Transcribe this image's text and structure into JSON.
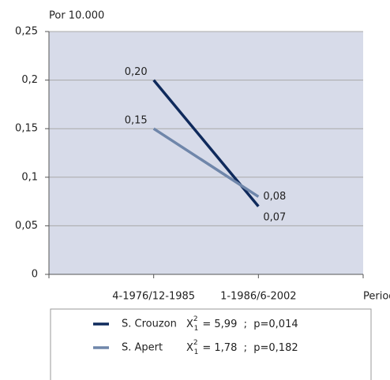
{
  "chart_data": {
    "type": "line",
    "y_axis_label": "Por 10.000",
    "x_axis_label": "Periodos",
    "categories": [
      "4-1976/12-1985",
      "1-1986/6-2002"
    ],
    "series": [
      {
        "name": "S. Crouzon",
        "color": "#0f2a5c",
        "values": [
          0.2,
          0.07
        ],
        "value_labels": [
          "0,20",
          "0,07"
        ]
      },
      {
        "name": "S. Apert",
        "color": "#6f86aa",
        "values": [
          0.15,
          0.08
        ],
        "value_labels": [
          "0,15",
          "0,08"
        ]
      }
    ],
    "legend_stats": [
      {
        "symbol": "X",
        "sup": "2",
        "sub": "1",
        "text": "= 5,99  ;  p=0,014"
      },
      {
        "symbol": "X",
        "sup": "2",
        "sub": "1",
        "text": "= 1,78  ;  p=0,182"
      }
    ],
    "ylim": [
      0,
      0.25
    ],
    "yticks": [
      0,
      {
        "value": 0.05,
        "label": "0,05"
      },
      {
        "value": 0.1,
        "label": "0,1"
      },
      {
        "value": 0.15,
        "label": "0,15"
      },
      {
        "value": 0.2,
        "label": "0,2"
      },
      {
        "value": 0.25,
        "label": "0,25"
      }
    ],
    "grid": true
  }
}
